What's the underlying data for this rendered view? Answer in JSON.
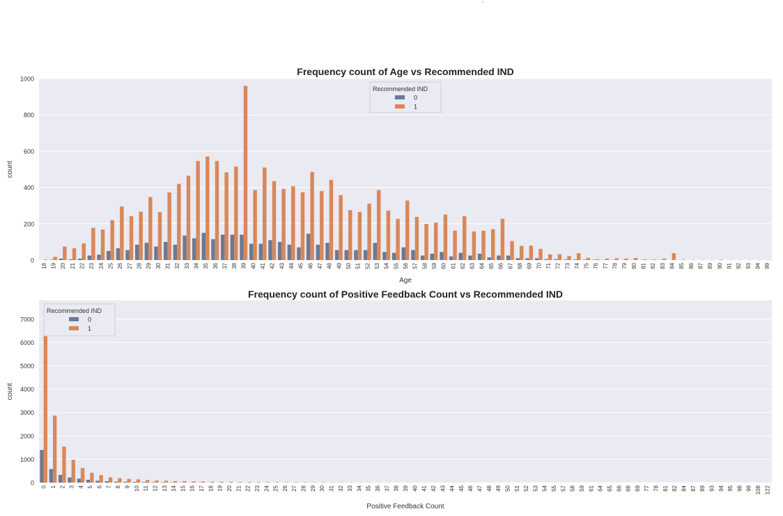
{
  "chart_data": [
    {
      "type": "bar",
      "title": "Frequency count of Age vs Recommended IND",
      "xlabel": "Age",
      "ylabel": "count",
      "ylim": [
        0,
        1000
      ],
      "yticks": [
        0,
        200,
        400,
        600,
        800,
        1000
      ],
      "grid": true,
      "legend_placement": "top-center",
      "legend_title": "Recommended IND",
      "colors": [
        "#6b7a93",
        "#d9885a"
      ],
      "background": "#eaeaf2",
      "categories": [
        "18",
        "19",
        "20",
        "21",
        "22",
        "23",
        "24",
        "25",
        "26",
        "27",
        "28",
        "29",
        "30",
        "31",
        "32",
        "33",
        "34",
        "35",
        "36",
        "37",
        "38",
        "39",
        "40",
        "41",
        "42",
        "43",
        "44",
        "45",
        "46",
        "47",
        "48",
        "49",
        "50",
        "51",
        "52",
        "53",
        "54",
        "55",
        "56",
        "57",
        "58",
        "59",
        "60",
        "61",
        "62",
        "63",
        "64",
        "65",
        "66",
        "67",
        "68",
        "69",
        "70",
        "71",
        "72",
        "73",
        "74",
        "75",
        "76",
        "77",
        "78",
        "79",
        "80",
        "81",
        "82",
        "83",
        "84",
        "85",
        "86",
        "87",
        "89",
        "90",
        "91",
        "92",
        "93",
        "94",
        "99"
      ],
      "series": [
        {
          "name": "0",
          "values": [
            0,
            2,
            8,
            4,
            8,
            25,
            30,
            50,
            65,
            55,
            85,
            95,
            75,
            100,
            85,
            135,
            120,
            150,
            115,
            140,
            140,
            140,
            90,
            90,
            110,
            100,
            85,
            70,
            145,
            85,
            95,
            55,
            55,
            55,
            55,
            95,
            45,
            40,
            70,
            55,
            25,
            35,
            45,
            20,
            40,
            25,
            35,
            15,
            25,
            25,
            10,
            10,
            10,
            5,
            5,
            3,
            3,
            2,
            2,
            1,
            1,
            1,
            1,
            1,
            1,
            1,
            0,
            0,
            0,
            0,
            0,
            0,
            0,
            0,
            0,
            0,
            0
          ]
        },
        {
          "name": "1",
          "values": [
            3,
            18,
            75,
            65,
            92,
            178,
            168,
            220,
            295,
            242,
            267,
            347,
            264,
            373,
            420,
            465,
            546,
            571,
            546,
            483,
            515,
            960,
            386,
            510,
            435,
            392,
            407,
            374,
            486,
            380,
            442,
            358,
            275,
            265,
            311,
            386,
            273,
            227,
            328,
            238,
            199,
            206,
            251,
            162,
            242,
            158,
            162,
            170,
            228,
            105,
            78,
            80,
            62,
            32,
            32,
            22,
            38,
            12,
            5,
            8,
            10,
            8,
            12,
            4,
            3,
            8,
            38,
            2,
            1,
            1,
            1,
            2,
            1,
            1,
            1,
            1,
            1
          ]
        }
      ]
    },
    {
      "type": "bar",
      "title": "Frequency count of Positive Feedback Count vs Recommended IND",
      "xlabel": "Positive Feedback Count",
      "ylabel": "count",
      "ylim": [
        0,
        7800
      ],
      "yticks": [
        0,
        1000,
        2000,
        3000,
        4000,
        5000,
        6000,
        7000
      ],
      "grid": true,
      "legend_placement": "top-left",
      "legend_title": "Recommended IND",
      "colors": [
        "#6b7a93",
        "#d9885a"
      ],
      "background": "#eaeaf2",
      "categories": [
        "0",
        "1",
        "2",
        "3",
        "4",
        "5",
        "6",
        "7",
        "8",
        "9",
        "10",
        "11",
        "12",
        "13",
        "14",
        "15",
        "16",
        "17",
        "18",
        "19",
        "20",
        "21",
        "22",
        "23",
        "24",
        "25",
        "26",
        "27",
        "28",
        "29",
        "30",
        "31",
        "32",
        "33",
        "34",
        "35",
        "36",
        "37",
        "38",
        "39",
        "40",
        "41",
        "42",
        "43",
        "44",
        "45",
        "46",
        "47",
        "48",
        "49",
        "50",
        "51",
        "52",
        "53",
        "54",
        "55",
        "57",
        "58",
        "59",
        "61",
        "64",
        "65",
        "66",
        "68",
        "69",
        "77",
        "78",
        "81",
        "82",
        "84",
        "87",
        "89",
        "93",
        "94",
        "95",
        "98",
        "99",
        "108",
        "122"
      ],
      "series": [
        {
          "name": "0",
          "values": [
            1400,
            580,
            330,
            220,
            170,
            120,
            80,
            60,
            40,
            35,
            30,
            25,
            20,
            15,
            12,
            10,
            8,
            8,
            6,
            5,
            4,
            4,
            3,
            3,
            3,
            2,
            2,
            2,
            2,
            2,
            2,
            1,
            1,
            1,
            1,
            1,
            1,
            1,
            1,
            1,
            1,
            1,
            1,
            1,
            1,
            1,
            1,
            1,
            1,
            1,
            1,
            1,
            1,
            1,
            1,
            1,
            1,
            1,
            1,
            1,
            1,
            1,
            1,
            1,
            1,
            1,
            1,
            1,
            1,
            1,
            1,
            1,
            1,
            1,
            1,
            1,
            1,
            1,
            1
          ]
        },
        {
          "name": "1",
          "values": [
            6400,
            2870,
            1540,
            980,
            620,
            420,
            320,
            230,
            190,
            160,
            140,
            110,
            95,
            80,
            65,
            58,
            50,
            45,
            38,
            32,
            30,
            26,
            24,
            22,
            20,
            18,
            16,
            14,
            14,
            12,
            12,
            10,
            10,
            9,
            8,
            8,
            7,
            7,
            6,
            6,
            5,
            5,
            5,
            4,
            4,
            4,
            4,
            3,
            3,
            3,
            3,
            3,
            3,
            2,
            2,
            2,
            2,
            2,
            2,
            2,
            2,
            2,
            2,
            2,
            2,
            1,
            1,
            1,
            1,
            1,
            1,
            1,
            1,
            1,
            1,
            1,
            1,
            1,
            1
          ]
        }
      ]
    }
  ]
}
